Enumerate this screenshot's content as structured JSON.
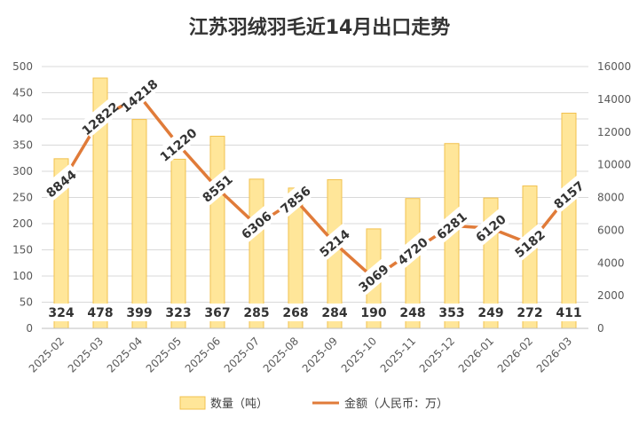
{
  "chart_data": {
    "type": "bar",
    "title": "江苏羽绒羽毛近14月出口走势",
    "categories": [
      "2025-02",
      "2025-03",
      "2025-04",
      "2025-05",
      "2025-06",
      "2025-07",
      "2025-08",
      "2025-09",
      "2025-10",
      "2025-11",
      "2025-12",
      "2026-01",
      "2026-02",
      "2026-03"
    ],
    "series": [
      {
        "name": "数量（吨）",
        "type": "bar",
        "axis": "left",
        "values": [
          324,
          478,
          399,
          323,
          367,
          285,
          268,
          284,
          190,
          248,
          353,
          249,
          272,
          411
        ],
        "color": "#FFE699",
        "edge_color": "#F2C14E"
      },
      {
        "name": "金额（人民币：万）",
        "type": "line",
        "axis": "right",
        "values": [
          8844,
          12822,
          14218,
          11220,
          8551,
          6306,
          7856,
          5214,
          3069,
          4720,
          6281,
          6120,
          5182,
          8157
        ],
        "color": "#E07B39"
      }
    ],
    "y_left": {
      "min": 0,
      "max": 500,
      "step": 50,
      "ticks": [
        "0",
        "50",
        "100",
        "150",
        "200",
        "250",
        "300",
        "350",
        "400",
        "450",
        "500"
      ]
    },
    "y_right": {
      "min": 0,
      "max": 16000,
      "step": 2000,
      "ticks": [
        "0",
        "2000",
        "4000",
        "6000",
        "8000",
        "10000",
        "12000",
        "14000",
        "16000"
      ]
    },
    "grid": true,
    "legend_position": "bottom"
  }
}
